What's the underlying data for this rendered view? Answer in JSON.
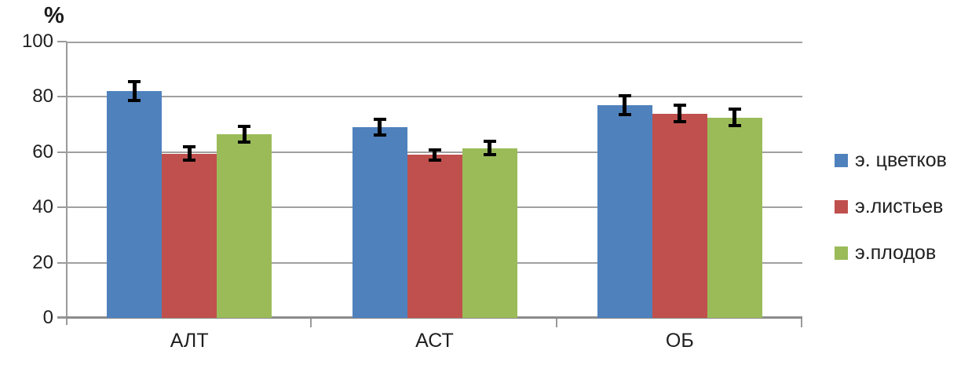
{
  "chart_data": {
    "type": "bar",
    "title": "",
    "xlabel": "",
    "ylabel": "%",
    "categories": [
      "АЛТ",
      "АСТ",
      "ОБ"
    ],
    "series": [
      {
        "name": "э. цветков",
        "color": "#4F81BD",
        "values": [
          82,
          69,
          77
        ],
        "error_bars": [
          4,
          3.5,
          4
        ]
      },
      {
        "name": "э.листьев",
        "color": "#C0504D",
        "values": [
          59.5,
          59,
          74
        ],
        "error_bars": [
          3,
          2.5,
          3.5
        ]
      },
      {
        "name": "э.плодов",
        "color": "#9BBB59",
        "values": [
          66.5,
          61.5,
          72.5
        ],
        "error_bars": [
          3.5,
          3,
          3.5
        ]
      }
    ],
    "ylim": [
      0,
      100
    ],
    "y_ticks": [
      0,
      20,
      40,
      60,
      80,
      100
    ],
    "grid": true,
    "legend_position": "right",
    "error_bar_color": "#000000",
    "axis_color": "#9a9a9a"
  }
}
